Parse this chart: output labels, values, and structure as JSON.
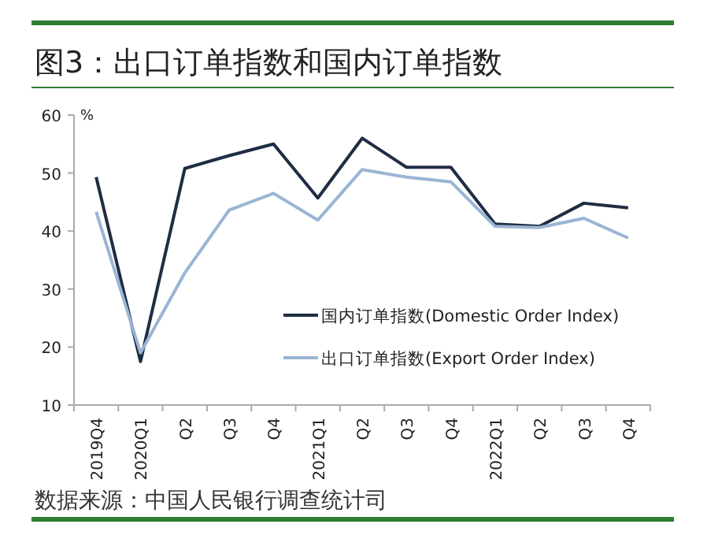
{
  "chart_data": {
    "type": "line",
    "title": "图3：出口订单指数和国内订单指数",
    "ylabel": "%",
    "categories": [
      "2019Q4",
      "2020Q1",
      "Q2",
      "Q3",
      "Q4",
      "2021Q1",
      "Q2",
      "Q3",
      "Q4",
      "2022Q1",
      "Q2",
      "Q3",
      "Q4"
    ],
    "series": [
      {
        "name": "国内订单指数(Domestic Order Index)",
        "color": "#1f2d44",
        "values": [
          49.3,
          17.5,
          50.8,
          53,
          55,
          45.7,
          56,
          51,
          51,
          41.2,
          40.8,
          44.8,
          44.0
        ]
      },
      {
        "name": "出口订单指数(Export Order Index)",
        "color": "#9ab5d4",
        "values": [
          43.3,
          19,
          32.8,
          43.6,
          46.5,
          41.9,
          50.6,
          49.3,
          48.5,
          40.8,
          40.6,
          42.2,
          38.8
        ]
      }
    ],
    "ylim": [
      10,
      60
    ],
    "yticks": [
      10,
      20,
      30,
      40,
      50,
      60
    ],
    "legend": "right",
    "grid": false,
    "marker": "none",
    "line_style": "solid",
    "annotations": [
      "数据来源：中国人民银行调查统计司"
    ]
  }
}
